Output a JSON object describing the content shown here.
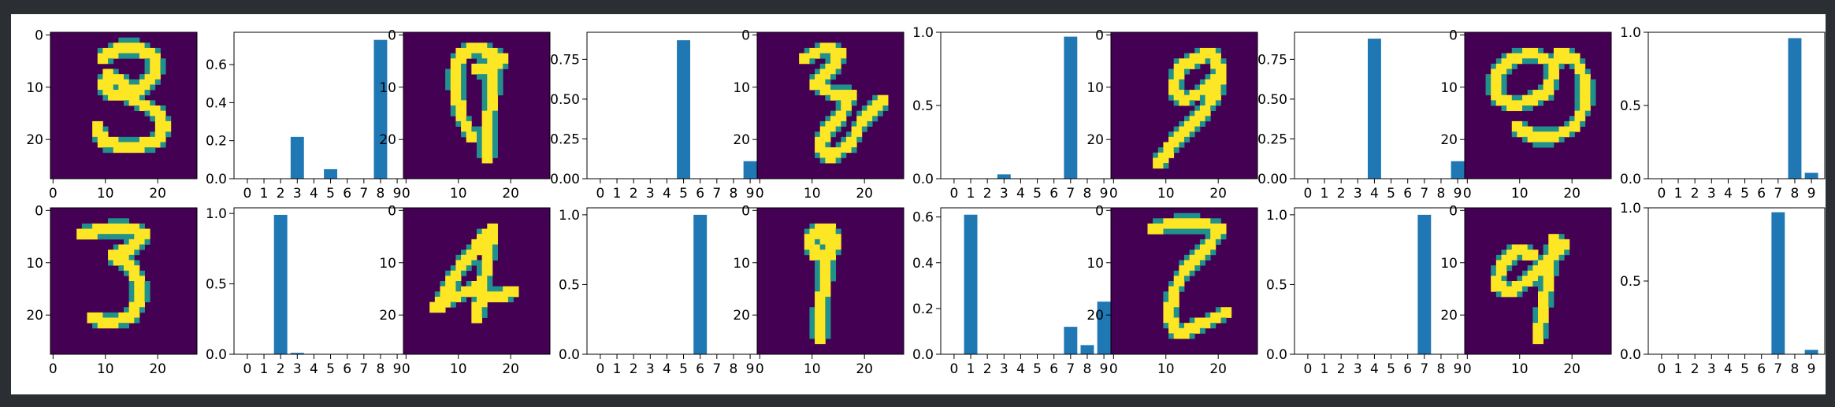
{
  "chart_data": [
    {
      "id": "r1c1",
      "type": "heatmap",
      "image": "digit-image",
      "description": "digit 3 (looped)",
      "xticks": [
        0,
        10,
        20
      ],
      "yticks": [
        0,
        10,
        20
      ]
    },
    {
      "id": "r1c2",
      "type": "bar",
      "categories": [
        "0",
        "1",
        "2",
        "3",
        "4",
        "5",
        "6",
        "7",
        "8",
        "9"
      ],
      "values": [
        0,
        0,
        0,
        0.22,
        0,
        0.05,
        0,
        0,
        0.73,
        0
      ],
      "ylim": [
        0,
        0.77
      ],
      "yticks": [
        "0.0",
        "0.2",
        "0.4",
        "0.6"
      ]
    },
    {
      "id": "r1c3",
      "type": "heatmap",
      "image": "digit-image",
      "description": "digit 9",
      "xticks": [
        0,
        10,
        20
      ],
      "yticks": [
        0,
        10,
        20
      ]
    },
    {
      "id": "r1c4",
      "type": "bar",
      "categories": [
        "0",
        "1",
        "2",
        "3",
        "4",
        "5",
        "6",
        "7",
        "8",
        "9"
      ],
      "values": [
        0,
        0,
        0,
        0,
        0,
        0.87,
        0,
        0,
        0,
        0.11
      ],
      "ylim": [
        0,
        0.92
      ],
      "yticks": [
        "0.00",
        "0.25",
        "0.50",
        "0.75"
      ]
    },
    {
      "id": "r1c5",
      "type": "heatmap",
      "image": "digit-image",
      "description": "digit 3 (curly)",
      "xticks": [
        0,
        10,
        20
      ],
      "yticks": [
        0,
        10,
        20
      ]
    },
    {
      "id": "r1c6",
      "type": "bar",
      "categories": [
        "0",
        "1",
        "2",
        "3",
        "4",
        "5",
        "6",
        "7",
        "8",
        "9"
      ],
      "values": [
        0,
        0,
        0,
        0.03,
        0,
        0,
        0,
        0.97,
        0,
        0
      ],
      "ylim": [
        0,
        1.0
      ],
      "yticks": [
        "0.0",
        "0.5",
        "1.0"
      ]
    },
    {
      "id": "r1c7",
      "type": "heatmap",
      "image": "digit-image",
      "description": "digit 9 (slanted)",
      "xticks": [
        0,
        10,
        20
      ],
      "yticks": [
        0,
        10,
        20
      ]
    },
    {
      "id": "r1c8",
      "type": "bar",
      "categories": [
        "0",
        "1",
        "2",
        "3",
        "4",
        "5",
        "6",
        "7",
        "8",
        "9"
      ],
      "values": [
        0,
        0,
        0,
        0,
        0.88,
        0,
        0,
        0,
        0,
        0.11
      ],
      "ylim": [
        0,
        0.92
      ],
      "yticks": [
        "0.00",
        "0.25",
        "0.50",
        "0.75"
      ]
    },
    {
      "id": "r1c9",
      "type": "heatmap",
      "image": "digit-image",
      "description": "digit 9 (wide loop)",
      "xticks": [
        0,
        10,
        20
      ],
      "yticks": [
        0,
        10,
        20
      ]
    },
    {
      "id": "r1c10",
      "type": "bar",
      "categories": [
        "0",
        "1",
        "2",
        "3",
        "4",
        "5",
        "6",
        "7",
        "8",
        "9"
      ],
      "values": [
        0,
        0,
        0,
        0,
        0,
        0,
        0,
        0,
        0.96,
        0.04
      ],
      "ylim": [
        0,
        1.0
      ],
      "yticks": [
        "0.0",
        "0.5",
        "1.0"
      ]
    },
    {
      "id": "r2c1",
      "type": "heatmap",
      "image": "digit-image",
      "description": "digit 3 (open)",
      "xticks": [
        0,
        10,
        20
      ],
      "yticks": [
        0,
        10,
        20
      ]
    },
    {
      "id": "r2c2",
      "type": "bar",
      "categories": [
        "0",
        "1",
        "2",
        "3",
        "4",
        "5",
        "6",
        "7",
        "8",
        "9"
      ],
      "values": [
        0,
        0,
        0.99,
        0.01,
        0,
        0,
        0,
        0,
        0,
        0
      ],
      "ylim": [
        0,
        1.04
      ],
      "yticks": [
        "0.0",
        "0.5",
        "1.0"
      ]
    },
    {
      "id": "r2c3",
      "type": "heatmap",
      "image": "digit-image",
      "description": "digit 4",
      "xticks": [
        0,
        10,
        20
      ],
      "yticks": [
        0,
        10,
        20
      ]
    },
    {
      "id": "r2c4",
      "type": "bar",
      "categories": [
        "0",
        "1",
        "2",
        "3",
        "4",
        "5",
        "6",
        "7",
        "8",
        "9"
      ],
      "values": [
        0,
        0,
        0,
        0,
        0,
        0,
        1.0,
        0,
        0,
        0
      ],
      "ylim": [
        0,
        1.05
      ],
      "yticks": [
        "0.0",
        "0.5",
        "1.0"
      ]
    },
    {
      "id": "r2c5",
      "type": "heatmap",
      "image": "digit-image",
      "description": "digit 9 (thin)",
      "xticks": [
        0,
        10,
        20
      ],
      "yticks": [
        0,
        10,
        20
      ]
    },
    {
      "id": "r2c6",
      "type": "bar",
      "categories": [
        "0",
        "1",
        "2",
        "3",
        "4",
        "5",
        "6",
        "7",
        "8",
        "9"
      ],
      "values": [
        0,
        0.61,
        0,
        0,
        0,
        0,
        0,
        0.12,
        0.04,
        0.23
      ],
      "ylim": [
        0,
        0.64
      ],
      "yticks": [
        "0.0",
        "0.2",
        "0.4",
        "0.6"
      ]
    },
    {
      "id": "r2c7",
      "type": "heatmap",
      "image": "digit-image",
      "description": "digit 2",
      "xticks": [
        0,
        10,
        20
      ],
      "yticks": [
        0,
        10,
        20
      ]
    },
    {
      "id": "r2c8",
      "type": "bar",
      "categories": [
        "0",
        "1",
        "2",
        "3",
        "4",
        "5",
        "6",
        "7",
        "8",
        "9"
      ],
      "values": [
        0,
        0,
        0,
        0,
        0,
        0,
        0,
        1.0,
        0,
        0
      ],
      "ylim": [
        0,
        1.05
      ],
      "yticks": [
        "0.0",
        "0.5",
        "1.0"
      ]
    },
    {
      "id": "r2c9",
      "type": "heatmap",
      "image": "digit-image",
      "description": "digit 9",
      "xticks": [
        0,
        10,
        20
      ],
      "yticks": [
        0,
        10,
        20
      ]
    },
    {
      "id": "r2c10",
      "type": "bar",
      "categories": [
        "0",
        "1",
        "2",
        "3",
        "4",
        "5",
        "6",
        "7",
        "8",
        "9"
      ],
      "values": [
        0,
        0,
        0,
        0,
        0,
        0,
        0,
        0.97,
        0,
        0.03
      ],
      "ylim": [
        0,
        1.0
      ],
      "yticks": [
        "0.0",
        "0.5",
        "1.0"
      ]
    }
  ],
  "colors": {
    "bar": "#1f77b4",
    "image_background": "#440154",
    "image_stroke": "#fde725",
    "image_edge": "#21918c",
    "page_background": "#2b2f33",
    "figure_background": "#ffffff"
  }
}
